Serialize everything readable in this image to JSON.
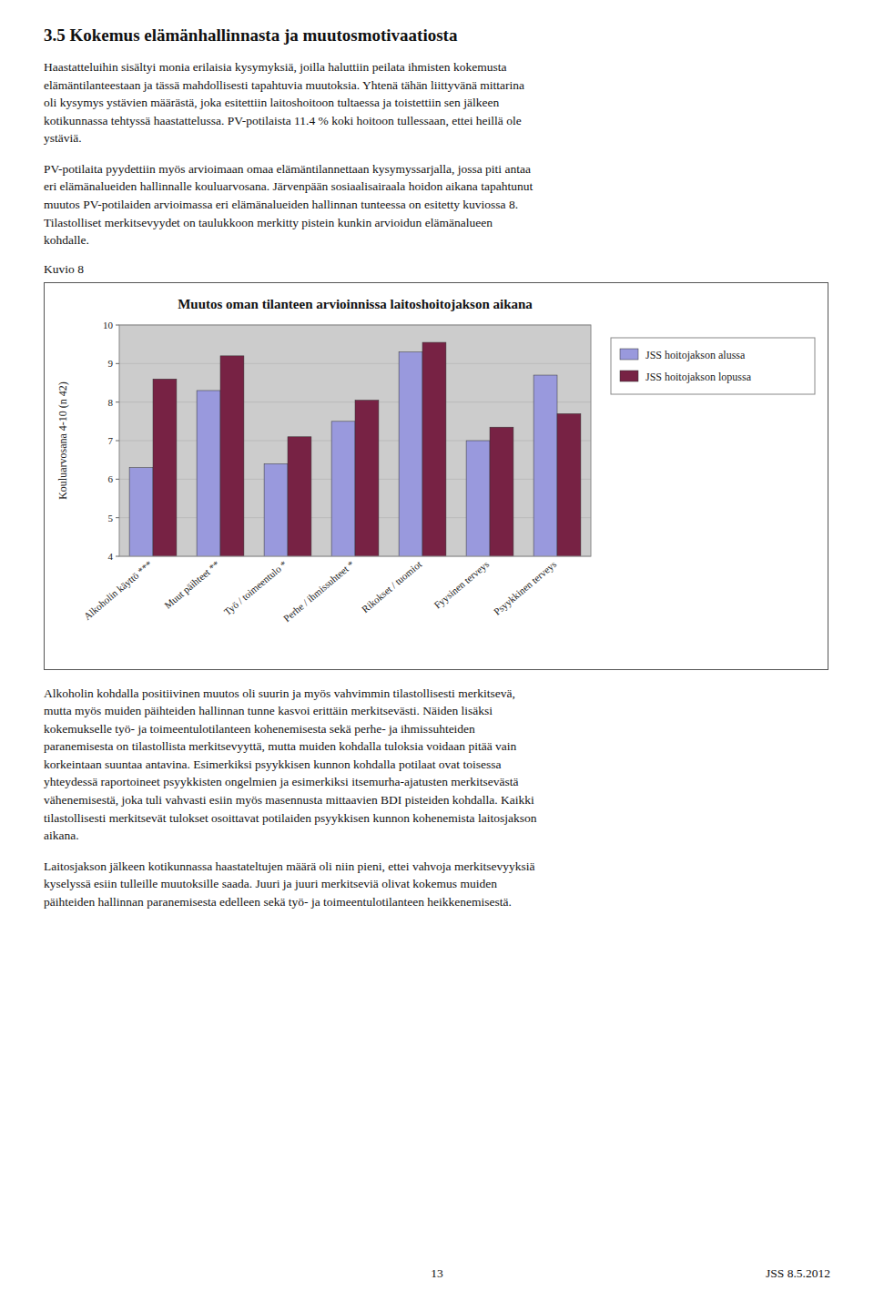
{
  "chart_data": {
    "type": "bar",
    "title": "Muutos oman tilanteen arvioinnissa laitoshoitojakson aikana",
    "ylabel": "Kouluarvosana 4-10 (n 42)",
    "categories": [
      "Alkoholin käyttö ***",
      "Muut päihteet **",
      "Työ / toimeentulo *",
      "Perhe / ihmissuhteet *",
      "Rikokset / tuomiot",
      "Fyysinen terveys",
      "Psyykkinen terveys"
    ],
    "series": [
      {
        "name": "JSS hoitojakson alussa",
        "color": "#9999dd",
        "values": [
          6.3,
          8.3,
          6.4,
          7.5,
          9.3,
          7.0,
          8.7
        ]
      },
      {
        "name": "JSS hoitojakson lopussa",
        "color": "#772244",
        "values": [
          8.6,
          9.2,
          7.1,
          8.05,
          9.55,
          7.35,
          7.7
        ]
      }
    ],
    "ylim": [
      4,
      10
    ],
    "yticks": [
      4,
      5,
      6,
      7,
      8,
      9,
      10
    ],
    "grid": true,
    "legend": "right"
  },
  "section_title": "3.5  Kokemus elämänhallinnasta ja muutosmotivaatiosta",
  "body": [
    "Haastatteluihin sisältyi monia erilaisia kysymyksiä, joilla haluttiin peilata ihmisten kokemusta\nelämäntilanteestaan ja tässä mahdollisesti tapahtuvia muutoksia. Yhtenä tähän liittyvänä mittarina\noli kysymys ystävien määrästä, joka esitettiin laitoshoitoon tultaessa ja toistettiin sen jälkeen\nkotikunnassa tehtyssä haastattelussa. PV-potilaista 11.4 % koki hoitoon tullessaan, ettei heillä ole\nystäviä.",
    "PV-potilaita pyydettiin myös arvioimaan omaa elämäntilannettaan kysymyssarjalla, jossa piti antaa\neri elämänalueiden hallinnalle kouluarvosana. Järvenpään sosiaalisairaala hoidon aikana tapahtunut\nmuutos PV-potilaiden arvioimassa eri elämänalueiden hallinnan tunteessa on esitetty kuviossa 8.\nTilastolliset merkitsevyydet on taulukkoon merkitty pistein kunkin arvioidun elämänalueen\nkohdalle."
  ],
  "figure_label": "Kuvio 8",
  "body_after": [
    "Alkoholin kohdalla positiivinen muutos oli suurin ja myös vahvimmin tilastollisesti merkitsevä,\nmutta myös muiden päihteiden hallinnan tunne kasvoi erittäin merkitsevästi. Näiden lisäksi\nkokemukselle työ- ja toimeentulotilanteen kohenemisesta sekä perhe- ja ihmissuhteiden\nparanemisesta on tilastollista merkitsevyyttä, mutta muiden kohdalla tuloksia voidaan pitää vain\nkorkeintaan suuntaa antavina. Esimerkiksi psyykkisen kunnon kohdalla potilaat ovat toisessa\nyhteydessä raportoineet psyykkisten ongelmien ja esimerkiksi itsemurha-ajatusten merkitsevästä\nvähenemisestä, joka tuli vahvasti esiin myös masennusta mittaavien BDI pisteiden kohdalla. Kaikki\ntilastollisesti merkitsevät tulokset osoittavat potilaiden psyykkisen kunnon kohenemista laitosjakson\naikana.",
    "Laitosjakson jälkeen kotikunnassa haastateltujen määrä oli niin pieni, ettei vahvoja merkitsevyyksiä\nkyselyssä esiin tulleille muutoksille saada. Juuri ja juuri merkitseviä olivat kokemus muiden\npäihteiden hallinnan paranemisesta edelleen sekä työ- ja toimeentulotilanteen heikkenemisestä."
  ],
  "page_num": "13",
  "page_date": "JSS 8.5.2012"
}
